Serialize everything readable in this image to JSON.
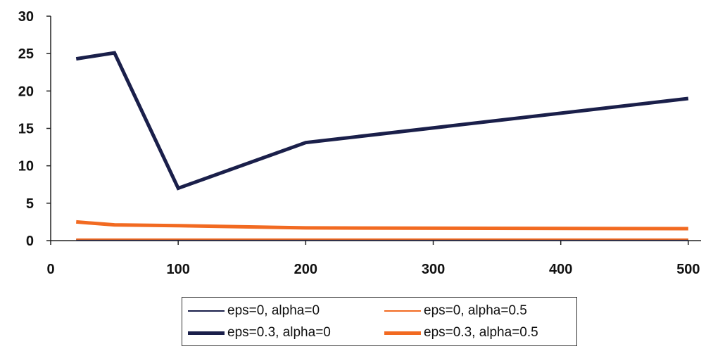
{
  "chart_data": {
    "type": "line",
    "title": "",
    "xlabel": "",
    "ylabel": "",
    "xlim": [
      0,
      510
    ],
    "ylim": [
      0,
      30
    ],
    "x_ticks": [
      0,
      100,
      200,
      300,
      400,
      500
    ],
    "y_ticks": [
      0,
      5,
      10,
      15,
      20,
      25,
      30
    ],
    "grid": false,
    "legend_position": "bottom",
    "series": [
      {
        "name": "eps=0, alpha=0",
        "color": "#1a1f4a",
        "weight": "thin",
        "x": [
          20,
          50,
          100,
          200,
          500
        ],
        "y": [
          0.1,
          0.1,
          0.1,
          0.1,
          0.1
        ]
      },
      {
        "name": "eps=0, alpha=0.5",
        "color": "#f26a21",
        "weight": "thin",
        "x": [
          20,
          50,
          100,
          200,
          500
        ],
        "y": [
          0.2,
          0.2,
          0.2,
          0.2,
          0.2
        ]
      },
      {
        "name": "eps=0.3, alpha=0",
        "color": "#1a1f4a",
        "weight": "thick",
        "x": [
          20,
          50,
          100,
          200,
          500
        ],
        "y": [
          24.3,
          25.1,
          7.0,
          13.1,
          19.0
        ]
      },
      {
        "name": "eps=0.3, alpha=0.5",
        "color": "#f26a21",
        "weight": "thick",
        "x": [
          20,
          50,
          100,
          200,
          500
        ],
        "y": [
          2.5,
          2.1,
          2.0,
          1.7,
          1.6
        ]
      }
    ]
  }
}
